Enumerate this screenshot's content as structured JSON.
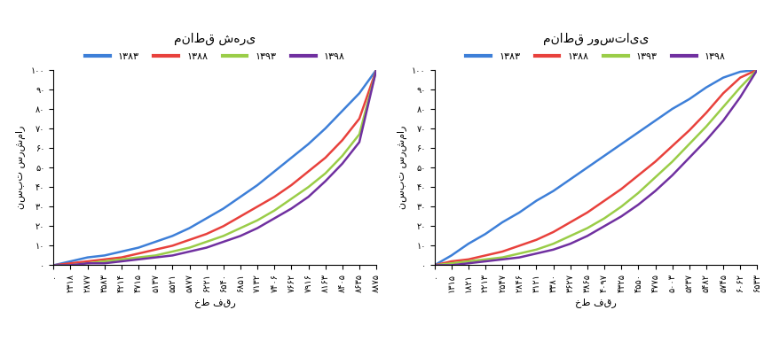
{
  "chart_data": [
    {
      "type": "line",
      "title": "مناطق شهری",
      "x_label": "خط فقر",
      "y_label": "نسبت سرشمار",
      "categories": [
        "۰",
        "۲۳۱۸",
        "۲۸۷۷",
        "۳۵۸۳",
        "۴۲۱۴",
        "۴۷۱۵",
        "۵۱۳۷",
        "۵۵۲۱",
        "۵۸۷۷",
        "۶۲۲۱",
        "۶۵۴۰",
        "۶۸۵۱",
        "۷۱۳۲",
        "۷۴۰۶",
        "۷۶۶۲",
        "۷۹۱۶",
        "۸۱۶۳",
        "۸۴۰۵",
        "۸۶۳۵",
        "۸۸۷۵"
      ],
      "series": [
        {
          "name": "۱۳۸۳",
          "color": "#3d7fd8",
          "values": [
            0,
            2,
            4,
            5,
            7,
            9,
            12,
            15,
            19,
            24,
            29,
            35,
            41,
            48,
            55,
            62,
            70,
            79,
            88,
            100
          ]
        },
        {
          "name": "۱۳۸۸",
          "color": "#e8413c",
          "values": [
            0,
            1,
            2,
            3,
            4,
            6,
            8,
            10,
            13,
            16,
            20,
            25,
            30,
            35,
            41,
            48,
            55,
            64,
            75,
            100
          ]
        },
        {
          "name": "۱۳۹۳",
          "color": "#9acd48",
          "values": [
            0,
            0,
            1,
            2,
            3,
            4,
            5,
            7,
            9,
            12,
            15,
            19,
            23,
            28,
            34,
            40,
            47,
            56,
            67,
            100
          ]
        },
        {
          "name": "۱۳۹۸",
          "color": "#7030a0",
          "values": [
            0,
            0,
            1,
            1,
            2,
            3,
            4,
            5,
            7,
            9,
            12,
            15,
            19,
            24,
            29,
            35,
            43,
            52,
            63,
            100
          ]
        }
      ],
      "ylim": [
        0,
        100
      ],
      "yticks": [
        {
          "value": 0,
          "label": "۰"
        },
        {
          "value": 10,
          "label": "۱۰"
        },
        {
          "value": 20,
          "label": "۲۰"
        },
        {
          "value": 30,
          "label": "۳۰"
        },
        {
          "value": 40,
          "label": "۴۰"
        },
        {
          "value": 50,
          "label": "۵۰"
        },
        {
          "value": 60,
          "label": "۶۰"
        },
        {
          "value": 70,
          "label": "۷۰"
        },
        {
          "value": 80,
          "label": "۸۰"
        },
        {
          "value": 90,
          "label": "۹۰"
        },
        {
          "value": 100,
          "label": "۱۰۰"
        }
      ],
      "grid": false,
      "legend": "top"
    },
    {
      "type": "line",
      "title": "مناطق روستایی",
      "x_label": "خط فقر",
      "y_label": "نسبت سرشمار",
      "categories": [
        "۰",
        "۱۳۱۵",
        "۱۸۲۱",
        "۲۲۱۳",
        "۲۵۴۷",
        "۲۸۴۶",
        "۳۱۲۱",
        "۳۳۸۰",
        "۳۶۲۷",
        "۳۸۶۵",
        "۴۰۹۷",
        "۴۳۲۵",
        "۴۵۵۰",
        "۴۷۷۵",
        "۵۰۰۳",
        "۵۲۳۷",
        "۵۴۸۲",
        "۵۷۴۵",
        "۶۰۶۲",
        "۶۵۳۳"
      ],
      "series": [
        {
          "name": "۱۳۸۳",
          "color": "#3d7fd8",
          "values": [
            0,
            5,
            11,
            16,
            22,
            27,
            33,
            38,
            44,
            50,
            56,
            62,
            68,
            74,
            80,
            85,
            91,
            96,
            99,
            100
          ]
        },
        {
          "name": "۱۳۸۸",
          "color": "#e8413c",
          "values": [
            0,
            2,
            3,
            5,
            7,
            10,
            13,
            17,
            22,
            27,
            33,
            39,
            46,
            53,
            61,
            69,
            78,
            88,
            96,
            100
          ]
        },
        {
          "name": "۱۳۹۳",
          "color": "#9acd48",
          "values": [
            0,
            1,
            2,
            3,
            4,
            6,
            8,
            11,
            15,
            19,
            24,
            30,
            37,
            45,
            53,
            62,
            71,
            81,
            91,
            100
          ]
        },
        {
          "name": "۱۳۹۸",
          "color": "#7030a0",
          "values": [
            0,
            0,
            1,
            2,
            3,
            4,
            6,
            8,
            11,
            15,
            20,
            25,
            31,
            38,
            46,
            55,
            64,
            74,
            86,
            100
          ]
        }
      ],
      "ylim": [
        0,
        100
      ],
      "yticks": [
        {
          "value": 0,
          "label": "۰"
        },
        {
          "value": 10,
          "label": "۱۰"
        },
        {
          "value": 20,
          "label": "۲۰"
        },
        {
          "value": 30,
          "label": "۳۰"
        },
        {
          "value": 40,
          "label": "۴۰"
        },
        {
          "value": 50,
          "label": "۵۰"
        },
        {
          "value": 60,
          "label": "۶۰"
        },
        {
          "value": 70,
          "label": "۷۰"
        },
        {
          "value": 80,
          "label": "۸۰"
        },
        {
          "value": 90,
          "label": "۹۰"
        },
        {
          "value": 100,
          "label": "۱۰۰"
        }
      ],
      "grid": false,
      "legend": "top"
    }
  ]
}
